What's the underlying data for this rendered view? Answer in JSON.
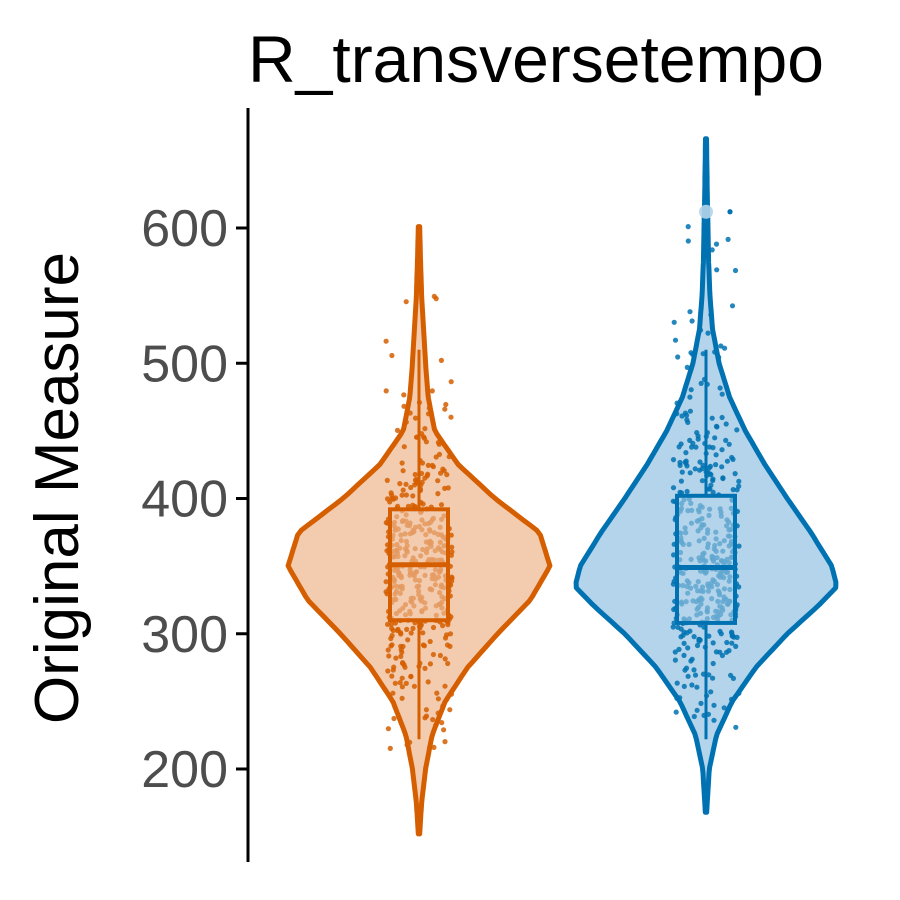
{
  "chart_data": {
    "type": "violin",
    "title": "R_transversetempo",
    "xlabel": "",
    "ylabel": "Original Measure",
    "ylim": [
      130,
      680
    ],
    "yticks": [
      200,
      300,
      400,
      500,
      600
    ],
    "grid": false,
    "legend": "none",
    "series": [
      {
        "color": "#d55e00",
        "fill": "#f3ccb0",
        "violin_min": 152,
        "violin_max": 601,
        "box": {
          "q1": 310,
          "median": 351,
          "q3": 392,
          "whisker_low": 222,
          "whisker_high": 510
        },
        "points_min": 215,
        "points_max": 553,
        "density": [
          [
            152,
            0.005
          ],
          [
            175,
            0.02
          ],
          [
            200,
            0.05
          ],
          [
            225,
            0.1
          ],
          [
            250,
            0.2
          ],
          [
            275,
            0.37
          ],
          [
            300,
            0.6
          ],
          [
            325,
            0.85
          ],
          [
            350,
            1.0
          ],
          [
            375,
            0.92
          ],
          [
            400,
            0.58
          ],
          [
            425,
            0.3
          ],
          [
            450,
            0.12
          ],
          [
            475,
            0.07
          ],
          [
            500,
            0.05
          ],
          [
            525,
            0.035
          ],
          [
            550,
            0.02
          ],
          [
            575,
            0.012
          ],
          [
            601,
            0.005
          ]
        ]
      },
      {
        "color": "#0072b2",
        "fill": "#b3d4ea",
        "violin_min": 168,
        "violin_max": 666,
        "box": {
          "q1": 308,
          "median": 349,
          "q3": 402,
          "whisker_low": 222,
          "whisker_high": 510
        },
        "points_min": 222,
        "points_max": 612,
        "outliers": [
          612
        ],
        "density": [
          [
            168,
            0.005
          ],
          [
            200,
            0.025
          ],
          [
            225,
            0.08
          ],
          [
            250,
            0.2
          ],
          [
            275,
            0.38
          ],
          [
            300,
            0.62
          ],
          [
            320,
            0.85
          ],
          [
            335,
            1.0
          ],
          [
            350,
            0.96
          ],
          [
            375,
            0.8
          ],
          [
            400,
            0.62
          ],
          [
            425,
            0.45
          ],
          [
            450,
            0.3
          ],
          [
            475,
            0.18
          ],
          [
            500,
            0.1
          ],
          [
            525,
            0.05
          ],
          [
            550,
            0.03
          ],
          [
            575,
            0.02
          ],
          [
            600,
            0.015
          ],
          [
            625,
            0.01
          ],
          [
            650,
            0.006
          ],
          [
            666,
            0.004
          ]
        ]
      }
    ]
  }
}
